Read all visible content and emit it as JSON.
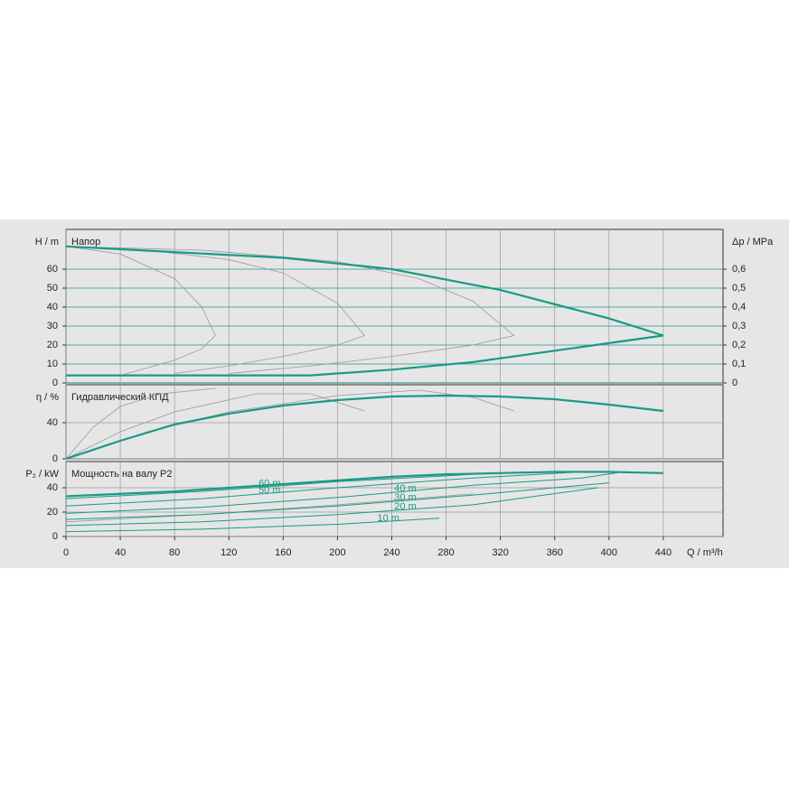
{
  "chart_data": [
    {
      "type": "line",
      "title": "Напор",
      "ylabel": "H / m",
      "y2label": "Δp / MPa",
      "xlim": [
        0,
        484
      ],
      "xticks": [
        0,
        40,
        80,
        120,
        160,
        200,
        240,
        280,
        320,
        360,
        400,
        440
      ],
      "ylim": [
        0,
        80
      ],
      "yticks": [
        0,
        10,
        20,
        30,
        40,
        50,
        60
      ],
      "y2lim": [
        0,
        0.8
      ],
      "y2ticks": [
        0,
        {
          "value": 0.1,
          "label": "0,1"
        },
        {
          "value": 0.2,
          "label": "0,2"
        },
        {
          "value": 0.3,
          "label": "0,3"
        },
        {
          "value": 0.4,
          "label": "0,4"
        },
        {
          "value": 0.5,
          "label": "0,5"
        },
        {
          "value": 0.6,
          "label": "0,6"
        }
      ],
      "grid": true,
      "grid_color": "#1a9a86",
      "series": [
        {
          "color": "#999999",
          "linewidth": 0.8,
          "x": [
            0,
            40,
            80,
            100,
            110,
            100,
            80,
            60,
            40
          ],
          "values": [
            72,
            68,
            55,
            40,
            25,
            18,
            12,
            8,
            4
          ]
        },
        {
          "color": "#999999",
          "linewidth": 0.8,
          "x": [
            0,
            60,
            120,
            160,
            200,
            220,
            200,
            160,
            120,
            80
          ],
          "values": [
            72,
            70,
            65,
            58,
            42,
            25,
            20,
            14,
            9,
            5
          ]
        },
        {
          "color": "#999999",
          "linewidth": 0.8,
          "x": [
            0,
            100,
            200,
            260,
            300,
            330,
            300,
            240,
            180,
            120
          ],
          "values": [
            72,
            70,
            64,
            55,
            43,
            25,
            20,
            14,
            9,
            5
          ]
        },
        {
          "color": "#1a9a86",
          "linewidth": 2.2,
          "x": [
            0,
            80,
            160,
            240,
            320,
            400,
            440
          ],
          "values": [
            72,
            69,
            66,
            60,
            49,
            34,
            25
          ]
        },
        {
          "color": "#1a9a86",
          "linewidth": 2.2,
          "x": [
            0,
            180,
            240,
            300,
            360,
            400,
            440
          ],
          "values": [
            4,
            4,
            7,
            11,
            17,
            21,
            25
          ]
        }
      ]
    },
    {
      "type": "line",
      "title": "Гидравлический КПД",
      "ylabel": "η / %",
      "xlim": [
        0,
        484
      ],
      "xticks": [
        0,
        40,
        80,
        120,
        160,
        200,
        240,
        280,
        320,
        360,
        400,
        440
      ],
      "ylim": [
        0,
        80
      ],
      "yticks": [
        0,
        40
      ],
      "grid": true,
      "grid_color": "#999999",
      "series": [
        {
          "color": "#999999",
          "linewidth": 0.8,
          "x": [
            0,
            20,
            40,
            70,
            110
          ],
          "values": [
            0,
            35,
            58,
            72,
            78
          ]
        },
        {
          "color": "#999999",
          "linewidth": 0.8,
          "x": [
            0,
            40,
            80,
            140,
            180,
            220
          ],
          "values": [
            0,
            30,
            52,
            72,
            72,
            53
          ]
        },
        {
          "color": "#999999",
          "linewidth": 0.8,
          "x": [
            0,
            60,
            120,
            200,
            260,
            300,
            330
          ],
          "values": [
            0,
            30,
            52,
            70,
            76,
            68,
            53
          ]
        },
        {
          "color": "#1a9a86",
          "linewidth": 2.2,
          "x": [
            0,
            40,
            80,
            120,
            160,
            200,
            240,
            280,
            320,
            360,
            400,
            440
          ],
          "values": [
            0,
            20,
            38,
            50,
            59,
            65,
            69,
            70,
            69,
            66,
            60,
            53
          ]
        }
      ]
    },
    {
      "type": "line",
      "title": "Мощность на валу P2",
      "ylabel": "P₂ / kW",
      "xlabel": "Q / m³/h",
      "xlim": [
        0,
        484
      ],
      "xticks": [
        0,
        40,
        80,
        120,
        160,
        200,
        240,
        280,
        320,
        360,
        400,
        440
      ],
      "ylim": [
        0,
        60
      ],
      "yticks": [
        0,
        20,
        40
      ],
      "grid": true,
      "grid_color": "#999999",
      "series": [
        {
          "color": "#999999",
          "linewidth": 0.8,
          "x": [
            0,
            100,
            200,
            300
          ],
          "values": [
            12,
            18,
            26,
            35
          ]
        },
        {
          "name": "10 m",
          "color": "#1a9a86",
          "linewidth": 1,
          "x": [
            0,
            100,
            200,
            275
          ],
          "values": [
            4,
            6,
            10,
            15
          ]
        },
        {
          "name": "20 m",
          "color": "#1a9a86",
          "linewidth": 1,
          "x": [
            0,
            100,
            200,
            300,
            392
          ],
          "values": [
            9,
            12,
            18,
            26,
            40
          ]
        },
        {
          "name": "30 m",
          "color": "#1a9a86",
          "linewidth": 1,
          "x": [
            0,
            100,
            200,
            300,
            400
          ],
          "values": [
            14,
            18,
            25,
            34,
            44
          ]
        },
        {
          "name": "40 m",
          "color": "#1a9a86",
          "linewidth": 1,
          "x": [
            0,
            100,
            200,
            300,
            380,
            410
          ],
          "values": [
            19,
            24,
            32,
            42,
            48,
            53
          ]
        },
        {
          "name": "50 m",
          "color": "#1a9a86",
          "linewidth": 1,
          "x": [
            0,
            100,
            200,
            300,
            380
          ],
          "values": [
            25,
            31,
            40,
            48,
            53
          ]
        },
        {
          "name": "60 m",
          "color": "#1a9a86",
          "linewidth": 1,
          "x": [
            0,
            100,
            200,
            300,
            340
          ],
          "values": [
            31,
            37,
            45,
            51,
            53
          ]
        },
        {
          "color": "#1a9a86",
          "linewidth": 2.2,
          "x": [
            0,
            80,
            160,
            240,
            280,
            320,
            360,
            400,
            440
          ],
          "values": [
            33,
            37,
            43,
            49,
            51,
            52,
            53,
            53,
            52
          ]
        }
      ]
    }
  ]
}
